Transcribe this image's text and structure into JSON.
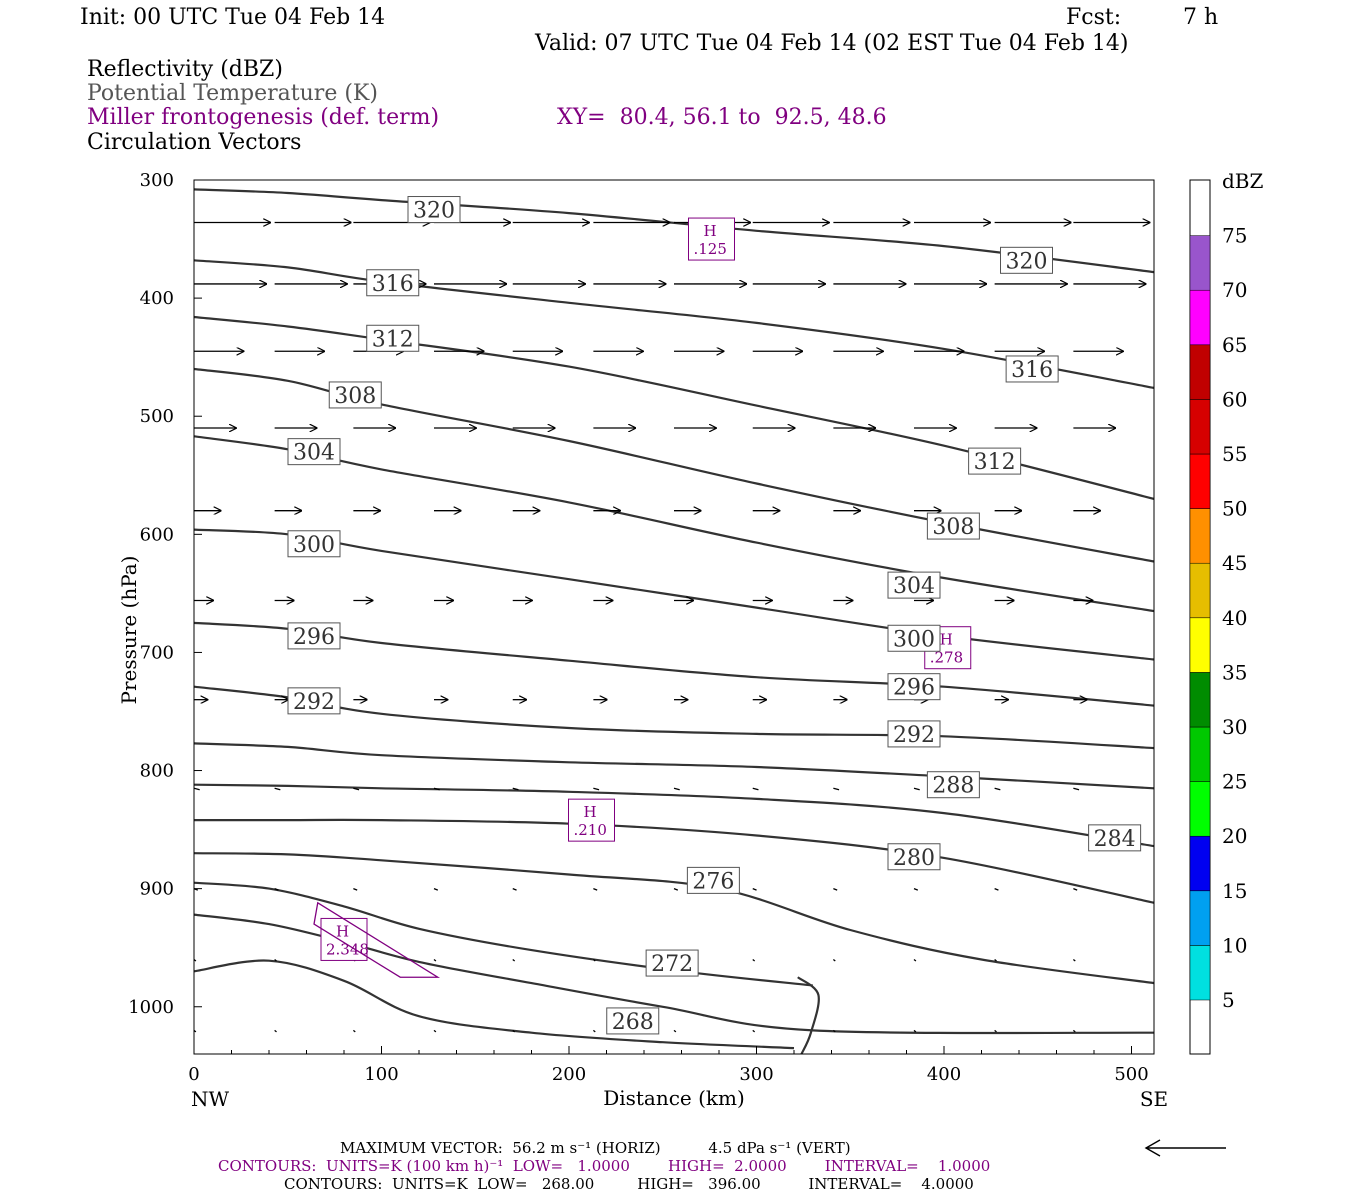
{
  "header": {
    "init": "Init: 00 UTC Tue 04 Feb 14",
    "fcst_label": "Fcst:",
    "fcst_value": "7 h",
    "valid": "Valid: 07 UTC Tue 04 Feb 14 (02 EST Tue 04 Feb 14)",
    "field1": "Reflectivity (dBZ)",
    "field2": "Potential Temperature (K)",
    "field3": "Miller frontogenesis (def. term)",
    "xy": "XY=  80.4, 56.1 to  92.5, 48.6",
    "field4": "Circulation Vectors"
  },
  "colors": {
    "contour": "#333333",
    "frontogenesis": "#800080",
    "vectors": "#000000"
  },
  "chart_data": {
    "type": "contour",
    "xlabel": "Distance (km)",
    "ylabel": "Pressure (hPa)",
    "xlim": [
      0,
      512
    ],
    "ylim": [
      300,
      1040
    ],
    "x_ticks": [
      0,
      100,
      200,
      300,
      400,
      500
    ],
    "y_ticks": [
      300,
      400,
      500,
      600,
      700,
      800,
      900,
      1000
    ],
    "x_end_labels": [
      "NW",
      "SE"
    ],
    "theta_contours": [
      {
        "label": "320",
        "points": [
          [
            0,
            308
          ],
          [
            50,
            311
          ],
          [
            100,
            317
          ],
          [
            200,
            328
          ],
          [
            300,
            343
          ],
          [
            400,
            356
          ],
          [
            512,
            378
          ]
        ],
        "label_at": [
          [
            128,
            325
          ],
          [
            444,
            368
          ]
        ]
      },
      {
        "label": "316",
        "points": [
          [
            0,
            368
          ],
          [
            50,
            374
          ],
          [
            100,
            386
          ],
          [
            200,
            404
          ],
          [
            300,
            421
          ],
          [
            400,
            443
          ],
          [
            512,
            476
          ]
        ],
        "label_at": [
          [
            106,
            387
          ],
          [
            447,
            460
          ]
        ]
      },
      {
        "label": "312",
        "points": [
          [
            0,
            416
          ],
          [
            50,
            424
          ],
          [
            100,
            435
          ],
          [
            200,
            458
          ],
          [
            300,
            491
          ],
          [
            400,
            525
          ],
          [
            512,
            570
          ]
        ],
        "label_at": [
          [
            106,
            434
          ],
          [
            427,
            538
          ]
        ]
      },
      {
        "label": "308",
        "points": [
          [
            0,
            460
          ],
          [
            50,
            470
          ],
          [
            100,
            490
          ],
          [
            200,
            521
          ],
          [
            300,
            557
          ],
          [
            400,
            590
          ],
          [
            512,
            623
          ]
        ],
        "label_at": [
          [
            86,
            482
          ],
          [
            405,
            593
          ]
        ]
      },
      {
        "label": "304",
        "points": [
          [
            0,
            517
          ],
          [
            50,
            528
          ],
          [
            100,
            545
          ],
          [
            200,
            573
          ],
          [
            300,
            607
          ],
          [
            400,
            637
          ],
          [
            512,
            665
          ]
        ],
        "label_at": [
          [
            64,
            530
          ],
          [
            384,
            643
          ]
        ]
      },
      {
        "label": "300",
        "points": [
          [
            0,
            596
          ],
          [
            50,
            600
          ],
          [
            100,
            614
          ],
          [
            200,
            638
          ],
          [
            300,
            662
          ],
          [
            400,
            686
          ],
          [
            512,
            706
          ]
        ],
        "label_at": [
          [
            64,
            608
          ],
          [
            384,
            688
          ]
        ]
      },
      {
        "label": "296",
        "points": [
          [
            0,
            675
          ],
          [
            50,
            680
          ],
          [
            100,
            692
          ],
          [
            200,
            707
          ],
          [
            300,
            721
          ],
          [
            400,
            729
          ],
          [
            512,
            745
          ]
        ],
        "label_at": [
          [
            64,
            686
          ],
          [
            384,
            729
          ]
        ]
      },
      {
        "label": "292",
        "points": [
          [
            0,
            729
          ],
          [
            50,
            738
          ],
          [
            100,
            752
          ],
          [
            200,
            764
          ],
          [
            300,
            769
          ],
          [
            400,
            771
          ],
          [
            512,
            781
          ]
        ],
        "label_at": [
          [
            64,
            741
          ],
          [
            384,
            769
          ]
        ]
      },
      {
        "label": "288",
        "points": [
          [
            0,
            777
          ],
          [
            50,
            780
          ],
          [
            100,
            787
          ],
          [
            200,
            793
          ],
          [
            300,
            797
          ],
          [
            400,
            805
          ],
          [
            512,
            815
          ]
        ],
        "label_at": [
          [
            405,
            812
          ]
        ]
      },
      {
        "label": "284",
        "points": [
          [
            0,
            812
          ],
          [
            50,
            813
          ],
          [
            100,
            815
          ],
          [
            200,
            818
          ],
          [
            300,
            824
          ],
          [
            400,
            836
          ],
          [
            512,
            864
          ]
        ],
        "label_at": [
          [
            491,
            857
          ]
        ]
      },
      {
        "label": "280",
        "points": [
          [
            0,
            842
          ],
          [
            50,
            842
          ],
          [
            100,
            842
          ],
          [
            200,
            845
          ],
          [
            300,
            855
          ],
          [
            400,
            874
          ],
          [
            512,
            912
          ]
        ],
        "label_at": [
          [
            384,
            873
          ]
        ]
      },
      {
        "label": "276",
        "points": [
          [
            0,
            870
          ],
          [
            50,
            871
          ],
          [
            100,
            876
          ],
          [
            200,
            888
          ],
          [
            280,
            900
          ],
          [
            350,
            935
          ],
          [
            420,
            960
          ],
          [
            512,
            980
          ]
        ],
        "label_at": [
          [
            277,
            893
          ]
        ]
      },
      {
        "label": "272",
        "points": [
          [
            0,
            895
          ],
          [
            40,
            900
          ],
          [
            80,
            915
          ],
          [
            120,
            934
          ],
          [
            180,
            952
          ],
          [
            260,
            970
          ],
          [
            330,
            982
          ]
        ],
        "label_at": [
          [
            255,
            963
          ]
        ]
      },
      {
        "label": "268",
        "points": [
          [
            0,
            970
          ],
          [
            40,
            961
          ],
          [
            80,
            978
          ],
          [
            120,
            1008
          ],
          [
            180,
            1022
          ],
          [
            250,
            1030
          ],
          [
            320,
            1035
          ]
        ],
        "label_at": [
          [
            234,
            1012
          ]
        ]
      }
    ],
    "extra_contours": [
      {
        "label": "",
        "points": [
          [
            322,
            975
          ],
          [
            333,
            990
          ],
          [
            329,
            1022
          ],
          [
            324,
            1040
          ]
        ]
      },
      {
        "label": "",
        "points": [
          [
            0,
            922
          ],
          [
            40,
            930
          ],
          [
            80,
            945
          ],
          [
            120,
            962
          ],
          [
            180,
            980
          ],
          [
            250,
            1000
          ],
          [
            330,
            1020
          ],
          [
            512,
            1022
          ]
        ]
      }
    ],
    "frontogenesis_maxima": [
      {
        "label": "H",
        "value": ".125",
        "x": 276,
        "y": 350
      },
      {
        "label": "H",
        "value": ".278",
        "x": 402,
        "y": 696
      },
      {
        "label": "H",
        "value": ".210",
        "x": 212,
        "y": 842
      },
      {
        "label": "H",
        "value": "2.348",
        "x": 80,
        "y": 943
      }
    ],
    "vectors": [
      {
        "p": 336,
        "u": 40,
        "x": [
          0,
          43,
          85,
          128,
          170,
          213,
          256,
          298,
          341,
          384,
          427,
          469
        ]
      },
      {
        "p": 388,
        "u": 38,
        "x": [
          0,
          43,
          85,
          128,
          170,
          213,
          256,
          298,
          341,
          384,
          427,
          469
        ]
      },
      {
        "p": 445,
        "u": 26,
        "x": [
          0,
          43,
          85,
          128,
          170,
          213,
          256,
          298,
          341,
          384,
          427,
          469
        ]
      },
      {
        "p": 510,
        "u": 22,
        "x": [
          0,
          43,
          85,
          128,
          170,
          213,
          256,
          298,
          341,
          384,
          427,
          469
        ]
      },
      {
        "p": 580,
        "u": 14,
        "x": [
          0,
          43,
          85,
          128,
          170,
          213,
          256,
          298,
          341,
          384,
          427,
          469
        ]
      },
      {
        "p": 656,
        "u": 10,
        "x": [
          0,
          43,
          85,
          128,
          170,
          213,
          256,
          298,
          341,
          384,
          427,
          469
        ]
      },
      {
        "p": 740,
        "u": 7,
        "x": [
          0,
          43,
          85,
          128,
          170,
          213,
          256,
          298,
          341,
          384,
          427,
          469
        ]
      },
      {
        "p": 815,
        "u": 3,
        "x": [
          0,
          43,
          85,
          128,
          170,
          213,
          256,
          298,
          341,
          384,
          427,
          469
        ]
      },
      {
        "p": 900,
        "u": 2,
        "x": [
          0,
          43,
          85,
          128,
          170,
          213,
          256,
          298,
          341,
          384,
          427,
          469
        ]
      },
      {
        "p": 960,
        "u": 1,
        "x": [
          0,
          43,
          85,
          128,
          170,
          213,
          256,
          298,
          341,
          384,
          427,
          469
        ]
      },
      {
        "p": 1020,
        "u": 1,
        "x": [
          0,
          43,
          85,
          128,
          170,
          213,
          256,
          298,
          341,
          384,
          427,
          469
        ]
      }
    ],
    "colorbar": {
      "title": "dBZ",
      "labels": [
        "5",
        "10",
        "15",
        "20",
        "25",
        "30",
        "35",
        "40",
        "45",
        "50",
        "55",
        "60",
        "65",
        "70",
        "75"
      ],
      "colors": [
        "#00e0e0",
        "#00a0f0",
        "#0000f0",
        "#00ff00",
        "#00c800",
        "#008c00",
        "#ffff00",
        "#e6be00",
        "#ff9000",
        "#ff0000",
        "#d60000",
        "#c00000",
        "#ff00ff",
        "#9955cc"
      ]
    }
  },
  "footer": {
    "line1": "MAXIMUM VECTOR:  56.2 m s⁻¹ (HORIZ)          4.5 dPa s⁻¹ (VERT)",
    "line2": "CONTOURS:  UNITS=K (100 km h)⁻¹  LOW=   1.0000        HIGH=  2.0000        INTERVAL=    1.0000",
    "line3": "CONTOURS:  UNITS=K  LOW=   268.00         HIGH=   396.00          INTERVAL=    4.0000"
  }
}
